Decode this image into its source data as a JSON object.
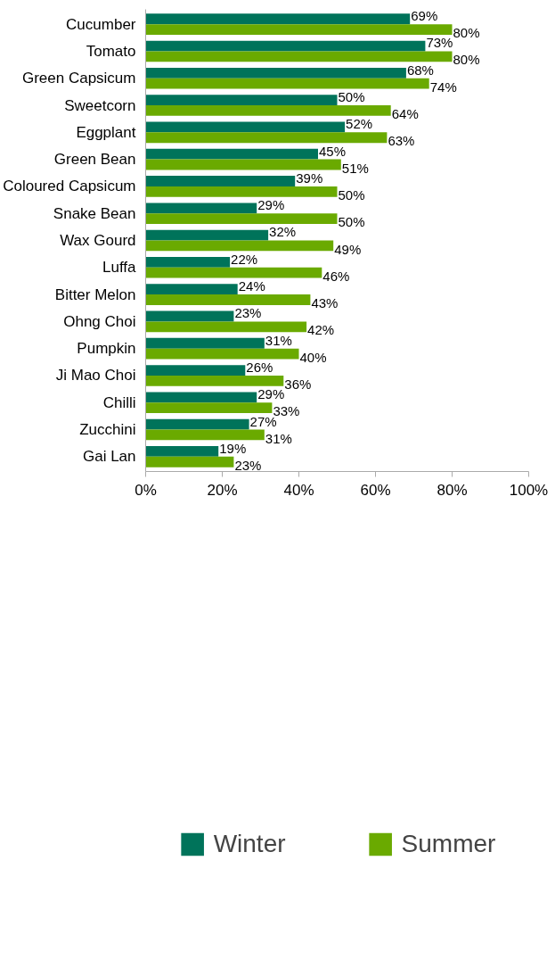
{
  "chart_data": {
    "type": "bar",
    "orientation": "horizontal",
    "categories": [
      "Cucumber",
      "Tomato",
      "Green Capsicum",
      "Sweetcorn",
      "Eggplant",
      "Green Bean",
      "Coloured Capsicum",
      "Snake Bean",
      "Wax Gourd",
      "Luffa",
      "Bitter Melon",
      "Ohng Choi",
      "Pumpkin",
      "Ji Mao Choi",
      "Chilli",
      "Zucchini",
      "Gai Lan"
    ],
    "series": [
      {
        "name": "Winter",
        "color": "#00735a",
        "values": [
          69,
          73,
          68,
          50,
          52,
          45,
          39,
          29,
          32,
          22,
          24,
          23,
          31,
          26,
          29,
          27,
          19
        ],
        "value_labels": [
          "69%",
          "73%",
          "68%",
          "50%",
          "52%",
          "45%",
          "39%",
          "29%",
          "32%",
          "22%",
          "24%",
          "23%",
          "31%",
          "26%",
          "29%",
          "27%",
          "19%"
        ]
      },
      {
        "name": "Summer",
        "color": "#6aaa00",
        "values": [
          80,
          80,
          74,
          64,
          63,
          51,
          50,
          50,
          49,
          46,
          43,
          42,
          40,
          36,
          33,
          31,
          23
        ],
        "value_labels": [
          "80%",
          "80%",
          "74%",
          "64%",
          "63%",
          "51%",
          "50%",
          "50%",
          "49%",
          "46%",
          "43%",
          "42%",
          "40%",
          "36%",
          "33%",
          "31%",
          "23%"
        ]
      }
    ],
    "xlim": [
      0,
      100
    ],
    "xticks": [
      {
        "value": 0,
        "label": "0%"
      },
      {
        "value": 20,
        "label": "20%"
      },
      {
        "value": 40,
        "label": "40%"
      },
      {
        "value": 60,
        "label": "60%"
      },
      {
        "value": 80,
        "label": "80%"
      },
      {
        "value": 100,
        "label": "100%"
      }
    ],
    "grid": false,
    "legend": "bottom"
  }
}
